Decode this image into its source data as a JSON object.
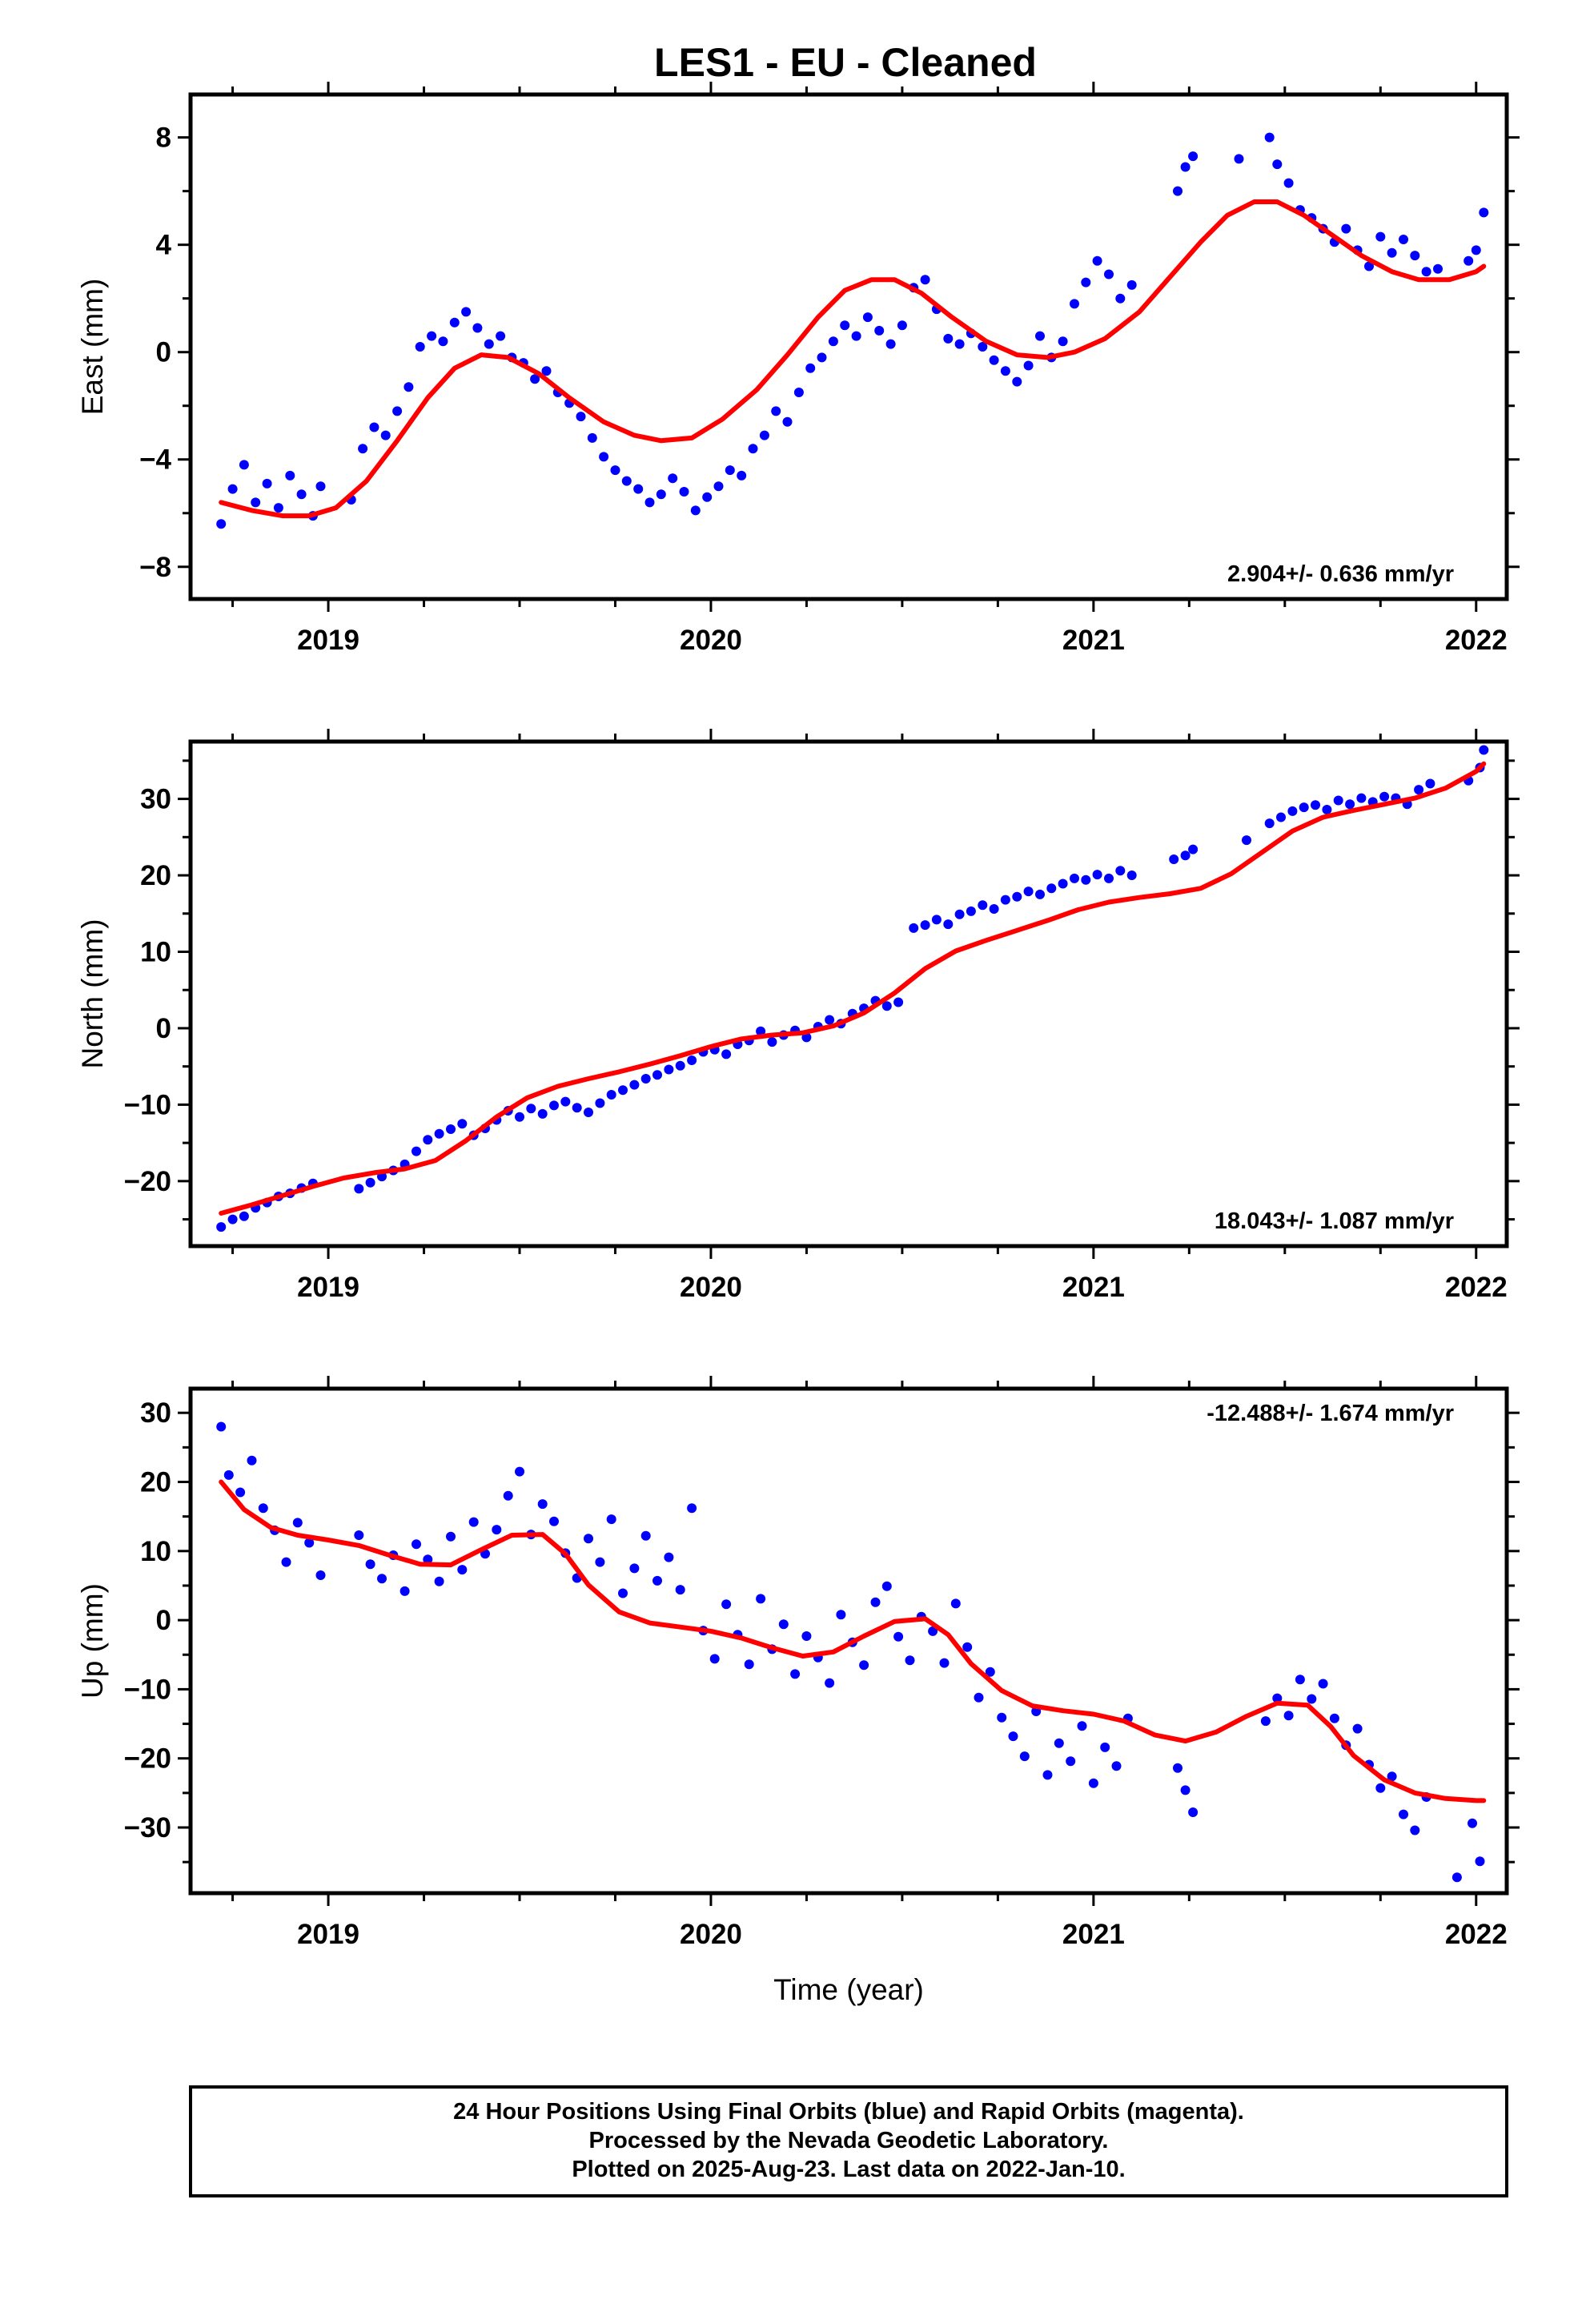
{
  "title": "LES1  - EU - Cleaned",
  "colors": {
    "final_orbits": "#0000ff",
    "fit": "#ff0000",
    "frame": "#000000"
  },
  "chart_data": [
    {
      "type": "scatter",
      "ylabel": "East (mm)",
      "xlabel": "",
      "rate_label": "2.904+/- 0.636 mm/yr",
      "rate_position": "bottom-right",
      "xlim": [
        2018.64,
        2022.08
      ],
      "ylim": [
        -9.2,
        9.6
      ],
      "xticks": [
        2019,
        2020,
        2021,
        2022
      ],
      "xtick_labels": [
        "2019",
        "2020",
        "2021",
        "2022"
      ],
      "yticks": [
        -8,
        -4,
        0,
        4,
        8
      ],
      "ytick_labels": [
        "−8",
        "−4",
        "0",
        "4",
        "8"
      ],
      "grid": false,
      "series": [
        {
          "kind": "points",
          "x": [
            2018.72,
            2018.75,
            2018.78,
            2018.81,
            2018.84,
            2018.87,
            2018.9,
            2018.93,
            2018.96,
            2018.98,
            2019.06,
            2019.09,
            2019.12,
            2019.15,
            2019.18,
            2019.21,
            2019.24,
            2019.27,
            2019.3,
            2019.33,
            2019.36,
            2019.39,
            2019.42,
            2019.45,
            2019.48,
            2019.51,
            2019.54,
            2019.57,
            2019.6,
            2019.63,
            2019.66,
            2019.69,
            2019.72,
            2019.75,
            2019.78,
            2019.81,
            2019.84,
            2019.87,
            2019.9,
            2019.93,
            2019.96,
            2019.99,
            2020.02,
            2020.05,
            2020.08,
            2020.11,
            2020.14,
            2020.17,
            2020.2,
            2020.23,
            2020.26,
            2020.29,
            2020.32,
            2020.35,
            2020.38,
            2020.41,
            2020.44,
            2020.47,
            2020.5,
            2020.53,
            2020.56,
            2020.59,
            2020.62,
            2020.65,
            2020.68,
            2020.71,
            2020.74,
            2020.77,
            2020.8,
            2020.83,
            2020.86,
            2020.89,
            2020.92,
            2020.95,
            2020.98,
            2021.01,
            2021.04,
            2021.07,
            2021.1,
            2021.22,
            2021.24,
            2021.26,
            2021.38,
            2021.46,
            2021.48,
            2021.51,
            2021.54,
            2021.57,
            2021.6,
            2021.63,
            2021.66,
            2021.69,
            2021.72,
            2021.75,
            2021.78,
            2021.81,
            2021.84,
            2021.87,
            2021.9,
            2021.98,
            2022.0,
            2022.02
          ],
          "y": [
            -6.4,
            -5.1,
            -4.2,
            -5.6,
            -4.9,
            -5.8,
            -4.6,
            -5.3,
            -6.1,
            -5.0,
            -5.5,
            -3.6,
            -2.8,
            -3.1,
            -2.2,
            -1.3,
            0.2,
            0.6,
            0.4,
            1.1,
            1.5,
            0.9,
            0.3,
            0.6,
            -0.2,
            -0.4,
            -1.0,
            -0.7,
            -1.5,
            -1.9,
            -2.4,
            -3.2,
            -3.9,
            -4.4,
            -4.8,
            -5.1,
            -5.6,
            -5.3,
            -4.7,
            -5.2,
            -5.9,
            -5.4,
            -5.0,
            -4.4,
            -4.6,
            -3.6,
            -3.1,
            -2.2,
            -2.6,
            -1.5,
            -0.6,
            -0.2,
            0.4,
            1.0,
            0.6,
            1.3,
            0.8,
            0.3,
            1.0,
            2.4,
            2.7,
            1.6,
            0.5,
            0.3,
            0.7,
            0.2,
            -0.3,
            -0.7,
            -1.1,
            -0.5,
            0.6,
            -0.2,
            0.4,
            1.8,
            2.6,
            3.4,
            2.9,
            2.0,
            2.5,
            6.0,
            6.9,
            7.3,
            7.2,
            8.0,
            7.0,
            6.3,
            5.3,
            5.0,
            4.6,
            4.1,
            4.6,
            3.8,
            3.2,
            4.3,
            3.7,
            4.2,
            3.6,
            3.0,
            3.1,
            3.4,
            3.8,
            5.2
          ]
        },
        {
          "kind": "fit",
          "x": [
            2018.72,
            2018.8,
            2018.88,
            2018.95,
            2019.02,
            2019.1,
            2019.18,
            2019.26,
            2019.33,
            2019.4,
            2019.47,
            2019.55,
            2019.63,
            2019.72,
            2019.8,
            2019.87,
            2019.95,
            2020.03,
            2020.12,
            2020.2,
            2020.28,
            2020.35,
            2020.42,
            2020.48,
            2020.55,
            2020.63,
            2020.72,
            2020.8,
            2020.88,
            2020.95,
            2021.03,
            2021.12,
            2021.2,
            2021.28,
            2021.35,
            2021.42,
            2021.48,
            2021.55,
            2021.62,
            2021.7,
            2021.78,
            2021.85,
            2021.93,
            2022.0,
            2022.02
          ],
          "y": [
            -5.6,
            -5.9,
            -6.1,
            -6.1,
            -5.8,
            -4.8,
            -3.3,
            -1.7,
            -0.6,
            -0.1,
            -0.2,
            -0.8,
            -1.7,
            -2.6,
            -3.1,
            -3.3,
            -3.2,
            -2.5,
            -1.4,
            -0.1,
            1.3,
            2.3,
            2.7,
            2.7,
            2.2,
            1.3,
            0.4,
            -0.1,
            -0.2,
            0.0,
            0.5,
            1.5,
            2.8,
            4.1,
            5.1,
            5.6,
            5.6,
            5.1,
            4.4,
            3.6,
            3.0,
            2.7,
            2.7,
            3.0,
            3.2
          ]
        }
      ]
    },
    {
      "type": "scatter",
      "ylabel": "North (mm)",
      "xlabel": "",
      "rate_label": "18.043+/- 1.087 mm/yr",
      "rate_position": "bottom-right",
      "xlim": [
        2018.64,
        2022.08
      ],
      "ylim": [
        -28.5,
        37.5
      ],
      "xticks": [
        2019,
        2020,
        2021,
        2022
      ],
      "xtick_labels": [
        "2019",
        "2020",
        "2021",
        "2022"
      ],
      "yticks": [
        -20,
        -10,
        0,
        10,
        20,
        30
      ],
      "ytick_labels": [
        "−20",
        "−10",
        "0",
        "10",
        "20",
        "30"
      ],
      "grid": false,
      "series": [
        {
          "kind": "points",
          "x": [
            2018.72,
            2018.75,
            2018.78,
            2018.81,
            2018.84,
            2018.87,
            2018.9,
            2018.93,
            2018.96,
            2019.08,
            2019.11,
            2019.14,
            2019.17,
            2019.2,
            2019.23,
            2019.26,
            2019.29,
            2019.32,
            2019.35,
            2019.38,
            2019.41,
            2019.44,
            2019.47,
            2019.5,
            2019.53,
            2019.56,
            2019.59,
            2019.62,
            2019.65,
            2019.68,
            2019.71,
            2019.74,
            2019.77,
            2019.8,
            2019.83,
            2019.86,
            2019.89,
            2019.92,
            2019.95,
            2019.98,
            2020.01,
            2020.04,
            2020.07,
            2020.1,
            2020.13,
            2020.16,
            2020.19,
            2020.22,
            2020.25,
            2020.28,
            2020.31,
            2020.34,
            2020.37,
            2020.4,
            2020.43,
            2020.46,
            2020.49,
            2020.53,
            2020.56,
            2020.59,
            2020.62,
            2020.65,
            2020.68,
            2020.71,
            2020.74,
            2020.77,
            2020.8,
            2020.83,
            2020.86,
            2020.89,
            2020.92,
            2020.95,
            2020.98,
            2021.01,
            2021.04,
            2021.07,
            2021.1,
            2021.21,
            2021.24,
            2021.26,
            2021.4,
            2021.46,
            2021.49,
            2021.52,
            2021.55,
            2021.58,
            2021.61,
            2021.64,
            2021.67,
            2021.7,
            2021.73,
            2021.76,
            2021.79,
            2021.82,
            2021.85,
            2021.88,
            2021.98,
            2022.01,
            2022.02
          ],
          "y": [
            -26.0,
            -25.0,
            -24.6,
            -23.5,
            -22.8,
            -22.0,
            -21.6,
            -20.9,
            -20.3,
            -21.0,
            -20.2,
            -19.4,
            -18.6,
            -17.8,
            -16.1,
            -14.6,
            -13.8,
            -13.2,
            -12.5,
            -14.0,
            -13.1,
            -12.0,
            -10.8,
            -11.6,
            -10.5,
            -11.2,
            -10.1,
            -9.6,
            -10.4,
            -11.0,
            -9.8,
            -8.7,
            -8.1,
            -7.4,
            -6.6,
            -6.1,
            -5.4,
            -4.9,
            -4.2,
            -3.1,
            -2.8,
            -3.4,
            -2.1,
            -1.6,
            -0.4,
            -1.8,
            -0.9,
            -0.3,
            -1.2,
            0.2,
            1.1,
            0.6,
            1.9,
            2.6,
            3.6,
            2.9,
            3.4,
            13.1,
            13.5,
            14.2,
            13.6,
            14.9,
            15.3,
            16.1,
            15.6,
            16.8,
            17.2,
            17.9,
            17.5,
            18.3,
            18.9,
            19.6,
            19.4,
            20.1,
            19.6,
            20.6,
            20.0,
            22.1,
            22.6,
            23.4,
            24.6,
            26.8,
            27.6,
            28.4,
            28.9,
            29.2,
            28.6,
            29.8,
            29.3,
            30.1,
            29.6,
            30.3,
            30.1,
            29.3,
            31.2,
            32.0,
            32.4,
            34.1,
            36.4
          ]
        },
        {
          "kind": "fit",
          "x": [
            2018.72,
            2018.8,
            2018.88,
            2018.96,
            2019.04,
            2019.12,
            2019.2,
            2019.28,
            2019.36,
            2019.44,
            2019.52,
            2019.6,
            2019.68,
            2019.76,
            2019.84,
            2019.92,
            2020.0,
            2020.08,
            2020.16,
            2020.24,
            2020.32,
            2020.4,
            2020.48,
            2020.56,
            2020.64,
            2020.72,
            2020.8,
            2020.88,
            2020.96,
            2021.04,
            2021.12,
            2021.2,
            2021.28,
            2021.36,
            2021.44,
            2021.52,
            2021.6,
            2021.68,
            2021.76,
            2021.84,
            2021.92,
            2022.0,
            2022.02
          ],
          "y": [
            -24.2,
            -23.1,
            -21.9,
            -20.7,
            -19.6,
            -18.9,
            -18.4,
            -17.3,
            -14.7,
            -11.6,
            -9.1,
            -7.6,
            -6.6,
            -5.7,
            -4.7,
            -3.6,
            -2.4,
            -1.4,
            -0.9,
            -0.6,
            0.3,
            2.0,
            4.6,
            7.8,
            10.1,
            11.5,
            12.8,
            14.1,
            15.5,
            16.5,
            17.1,
            17.6,
            18.3,
            20.2,
            23.0,
            25.8,
            27.6,
            28.5,
            29.3,
            30.1,
            31.4,
            33.6,
            34.6
          ]
        }
      ]
    },
    {
      "type": "scatter",
      "ylabel": "Up (mm)",
      "xlabel": "Time (year)",
      "rate_label": "-12.488+/- 1.674 mm/yr",
      "rate_position": "top-right",
      "xlim": [
        2018.64,
        2022.08
      ],
      "ylim": [
        -39.5,
        33.5
      ],
      "xticks": [
        2019,
        2020,
        2021,
        2022
      ],
      "xtick_labels": [
        "2019",
        "2020",
        "2021",
        "2022"
      ],
      "yticks": [
        -30,
        -20,
        -10,
        0,
        10,
        20,
        30
      ],
      "ytick_labels": [
        "−30",
        "−20",
        "−10",
        "0",
        "10",
        "20",
        "30"
      ],
      "grid": false,
      "series": [
        {
          "kind": "points",
          "x": [
            2018.72,
            2018.74,
            2018.77,
            2018.8,
            2018.83,
            2018.86,
            2018.89,
            2018.92,
            2018.95,
            2018.98,
            2019.08,
            2019.11,
            2019.14,
            2019.17,
            2019.2,
            2019.23,
            2019.26,
            2019.29,
            2019.32,
            2019.35,
            2019.38,
            2019.41,
            2019.44,
            2019.47,
            2019.5,
            2019.53,
            2019.56,
            2019.59,
            2019.62,
            2019.65,
            2019.68,
            2019.71,
            2019.74,
            2019.77,
            2019.8,
            2019.83,
            2019.86,
            2019.89,
            2019.92,
            2019.95,
            2019.98,
            2020.01,
            2020.04,
            2020.07,
            2020.1,
            2020.13,
            2020.16,
            2020.19,
            2020.22,
            2020.25,
            2020.28,
            2020.31,
            2020.34,
            2020.37,
            2020.4,
            2020.43,
            2020.46,
            2020.49,
            2020.52,
            2020.55,
            2020.58,
            2020.61,
            2020.64,
            2020.67,
            2020.7,
            2020.73,
            2020.76,
            2020.79,
            2020.82,
            2020.85,
            2020.88,
            2020.91,
            2020.94,
            2020.97,
            2021.0,
            2021.03,
            2021.06,
            2021.09,
            2021.22,
            2021.24,
            2021.26,
            2021.45,
            2021.48,
            2021.51,
            2021.54,
            2021.57,
            2021.6,
            2021.63,
            2021.66,
            2021.69,
            2021.72,
            2021.75,
            2021.78,
            2021.81,
            2021.84,
            2021.87,
            2021.95,
            2021.99,
            2022.01
          ],
          "y": [
            28.0,
            21.0,
            18.5,
            23.1,
            16.2,
            13.0,
            8.4,
            14.1,
            11.2,
            6.5,
            12.3,
            8.1,
            6.0,
            9.4,
            4.2,
            11.0,
            8.8,
            5.6,
            12.1,
            7.3,
            14.2,
            9.6,
            13.1,
            18.0,
            21.5,
            12.4,
            16.8,
            14.3,
            9.7,
            6.1,
            11.8,
            8.4,
            14.6,
            3.9,
            7.5,
            12.2,
            5.7,
            9.1,
            4.4,
            16.2,
            -1.5,
            -5.6,
            2.3,
            -2.1,
            -6.4,
            3.1,
            -4.2,
            -0.6,
            -7.8,
            -2.3,
            -5.4,
            -9.1,
            0.8,
            -3.2,
            -6.5,
            2.6,
            4.9,
            -2.4,
            -5.8,
            0.5,
            -1.6,
            -6.2,
            2.4,
            -3.9,
            -11.2,
            -7.5,
            -14.1,
            -16.8,
            -19.7,
            -13.2,
            -22.4,
            -17.8,
            -20.4,
            -15.3,
            -23.6,
            -18.4,
            -21.1,
            -14.2,
            -21.4,
            -24.6,
            -27.8,
            -14.6,
            -11.3,
            -13.8,
            -8.6,
            -11.4,
            -9.2,
            -14.2,
            -18.1,
            -15.7,
            -20.9,
            -24.3,
            -22.6,
            -28.1,
            -30.4,
            -25.6,
            -37.2,
            -29.4,
            -34.9
          ]
        },
        {
          "kind": "fit",
          "x": [
            2018.72,
            2018.78,
            2018.85,
            2018.92,
            2019.0,
            2019.08,
            2019.16,
            2019.24,
            2019.32,
            2019.4,
            2019.48,
            2019.56,
            2019.62,
            2019.68,
            2019.76,
            2019.84,
            2019.92,
            2020.0,
            2020.08,
            2020.16,
            2020.24,
            2020.32,
            2020.4,
            2020.48,
            2020.56,
            2020.62,
            2020.68,
            2020.76,
            2020.84,
            2020.92,
            2021.0,
            2021.08,
            2021.16,
            2021.24,
            2021.32,
            2021.4,
            2021.48,
            2021.56,
            2021.62,
            2021.68,
            2021.76,
            2021.84,
            2021.92,
            2022.0,
            2022.02
          ],
          "y": [
            20.0,
            16.0,
            13.4,
            12.3,
            11.6,
            10.8,
            9.4,
            8.1,
            8.0,
            10.2,
            12.3,
            12.4,
            9.6,
            5.1,
            1.2,
            -0.4,
            -1.0,
            -1.6,
            -2.6,
            -4.0,
            -5.2,
            -4.6,
            -2.3,
            -0.2,
            0.2,
            -2.1,
            -6.3,
            -10.2,
            -12.4,
            -13.1,
            -13.6,
            -14.6,
            -16.6,
            -17.5,
            -16.2,
            -13.9,
            -12.0,
            -12.3,
            -15.4,
            -19.6,
            -23.1,
            -25.0,
            -25.8,
            -26.1,
            -26.1
          ]
        }
      ]
    }
  ],
  "footer": {
    "lines": [
      "24 Hour Positions Using Final Orbits (blue) and Rapid Orbits (magenta).",
      "Processed by the Nevada Geodetic Laboratory.",
      "Plotted on 2025-Aug-23. Last data on 2022-Jan-10."
    ]
  }
}
